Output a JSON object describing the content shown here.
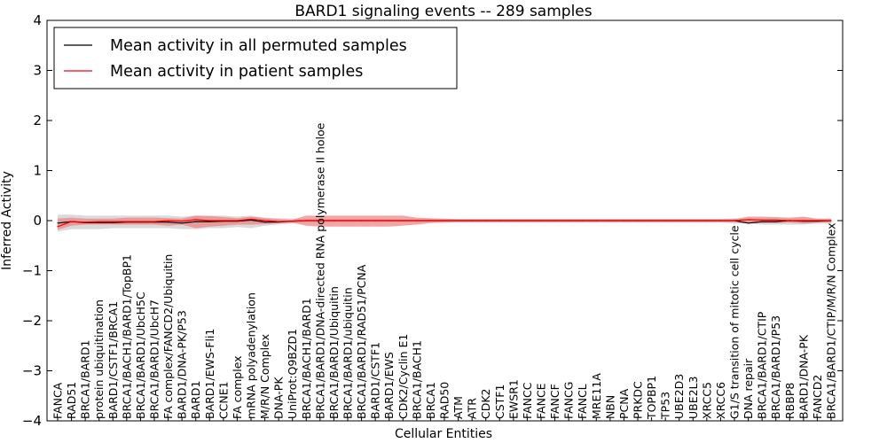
{
  "chart_data": {
    "type": "line",
    "title": "BARD1 signaling events -- 289 samples",
    "xlabel": "Cellular Entities",
    "ylabel": "Inferred Activity",
    "ylim": [
      -4,
      4
    ],
    "yticks": [
      -4,
      -3,
      -2,
      -1,
      0,
      1,
      2,
      3,
      4
    ],
    "ytick_labels": [
      "−4",
      "−3",
      "−2",
      "−1",
      "0",
      "1",
      "2",
      "3",
      "4"
    ],
    "legend": {
      "position": "top-left",
      "entries": [
        {
          "label": "Mean activity in all permuted samples",
          "color": "#000000"
        },
        {
          "label": "Mean activity in patient samples",
          "color": "#ff0000"
        }
      ]
    },
    "categories": [
      "FANCA",
      "RAD51",
      "BRCA1/BARD1",
      "protein ubiquitination",
      "BARD1/CSTF1/BRCA1",
      "BRCA1/BACH1/BARD1/TopBP1",
      "BRCA1/BARD1/UbcH5C",
      "BRCA1/BARD1/UbcH7",
      "FA complex/FANCD2/Ubiquitin",
      "BARD1/DNA-PK/P53",
      "BARD1",
      "BARD1/EWS-Fli1",
      "CCNE1",
      "FA complex",
      "mRNA polyadenylation",
      "M/R/N Complex",
      "DNA-PK",
      "UniProt:Q9BZD1",
      "BRCA1/BACH1/BARD1",
      "BRCA1/BARD1/DNA-directed RNA polymerase II holoe",
      "BRCA1/BARD1/Ubiquitin",
      "BRCA1/BARD1/ubiquitin",
      "BRCA1/BARD1/RAD51/PCNA",
      "BARD1/CSTF1",
      "BARD1/EWS",
      "CDK2/Cyclin E1",
      "BRCA1/BACH1",
      "BRCA1",
      "RAD50",
      "ATM",
      "ATR",
      "CDK2",
      "CSTF1",
      "EWSR1",
      "FANCC",
      "FANCE",
      "FANCF",
      "FANCG",
      "FANCL",
      "MRE11A",
      "NBN",
      "PCNA",
      "PRKDC",
      "TOPBP1",
      "TP53",
      "UBE2D3",
      "UBE2L3",
      "XRCC5",
      "XRCC6",
      "G1/S transition of mitotic cell cycle",
      "DNA repair",
      "BRCA1/BARD1/CTIP",
      "BRCA1/BARD1/P53",
      "RBBP8",
      "BARD1/DNA-PK",
      "FANCD2",
      "BRCA1/BARD1/CTIP/M/R/N Complex"
    ],
    "series": [
      {
        "name": "Mean activity in all permuted samples",
        "color": "#000000",
        "values": [
          -0.05,
          -0.02,
          -0.04,
          -0.04,
          -0.04,
          -0.03,
          -0.03,
          -0.03,
          -0.03,
          -0.05,
          -0.02,
          -0.02,
          -0.01,
          -0.01,
          0.01,
          -0.03,
          -0.03,
          -0.01,
          0.0,
          0.0,
          0.0,
          0.0,
          0.0,
          0.0,
          0.0,
          0.0,
          0.0,
          0.0,
          0.0,
          0.0,
          0.0,
          0.0,
          0.0,
          0.0,
          0.0,
          0.0,
          0.0,
          0.0,
          0.0,
          0.0,
          0.0,
          0.0,
          0.0,
          0.0,
          0.0,
          0.0,
          0.0,
          0.0,
          0.0,
          0.0,
          -0.05,
          -0.02,
          -0.02,
          0.0,
          -0.01,
          -0.01,
          0.0
        ]
      },
      {
        "name": "Mean activity in patient samples",
        "color": "#ff0000",
        "values": [
          -0.12,
          -0.02,
          -0.03,
          -0.02,
          -0.02,
          -0.02,
          -0.02,
          -0.02,
          0.0,
          -0.01,
          0.02,
          0.0,
          0.0,
          0.0,
          0.03,
          0.0,
          -0.02,
          -0.01,
          0.0,
          0.0,
          0.0,
          0.0,
          0.0,
          0.0,
          0.0,
          0.0,
          0.0,
          0.0,
          0.0,
          0.0,
          0.0,
          0.0,
          0.0,
          0.0,
          0.0,
          0.0,
          0.0,
          0.0,
          0.0,
          0.0,
          0.0,
          0.0,
          0.0,
          0.0,
          0.0,
          0.0,
          0.0,
          0.0,
          0.0,
          0.0,
          0.02,
          0.01,
          0.01,
          0.0,
          0.0,
          0.0,
          0.0
        ]
      }
    ],
    "bands": [
      {
        "name": "Permuted samples spread",
        "color": "#bbbbbb",
        "upper": [
          0.12,
          0.12,
          0.1,
          0.1,
          0.1,
          0.1,
          0.1,
          0.1,
          0.1,
          0.08,
          0.1,
          0.1,
          0.1,
          0.08,
          0.1,
          0.06,
          0.05,
          0.04,
          0.03,
          0.03,
          0.03,
          0.03,
          0.03,
          0.03,
          0.03,
          0.03,
          0.03,
          0.03,
          0.03,
          0.03,
          0.03,
          0.03,
          0.03,
          0.03,
          0.03,
          0.03,
          0.03,
          0.03,
          0.03,
          0.03,
          0.03,
          0.03,
          0.03,
          0.03,
          0.03,
          0.03,
          0.03,
          0.03,
          0.03,
          0.05,
          0.03,
          0.05,
          0.05,
          0.05,
          0.05,
          0.03,
          0.03
        ],
        "lower": [
          -0.22,
          -0.17,
          -0.17,
          -0.17,
          -0.15,
          -0.15,
          -0.15,
          -0.15,
          -0.15,
          -0.17,
          -0.17,
          -0.15,
          -0.15,
          -0.13,
          -0.15,
          -0.1,
          -0.08,
          -0.06,
          -0.04,
          -0.04,
          -0.04,
          -0.04,
          -0.04,
          -0.04,
          -0.04,
          -0.04,
          -0.04,
          -0.04,
          -0.04,
          -0.04,
          -0.04,
          -0.04,
          -0.04,
          -0.04,
          -0.04,
          -0.04,
          -0.04,
          -0.04,
          -0.04,
          -0.04,
          -0.04,
          -0.04,
          -0.04,
          -0.04,
          -0.04,
          -0.04,
          -0.04,
          -0.04,
          -0.04,
          -0.06,
          -0.06,
          -0.08,
          -0.08,
          -0.08,
          -0.08,
          -0.06,
          -0.06
        ]
      },
      {
        "name": "Patient samples spread",
        "color": "#f08080",
        "upper": [
          0.04,
          0.06,
          0.04,
          0.04,
          0.04,
          0.06,
          0.06,
          0.06,
          0.05,
          0.04,
          0.1,
          0.09,
          0.07,
          0.05,
          0.08,
          0.05,
          0.03,
          0.02,
          0.1,
          0.1,
          0.1,
          0.1,
          0.1,
          0.1,
          0.1,
          0.1,
          0.06,
          0.05,
          0.04,
          0.03,
          0.03,
          0.03,
          0.03,
          0.03,
          0.03,
          0.03,
          0.03,
          0.03,
          0.03,
          0.03,
          0.03,
          0.03,
          0.03,
          0.03,
          0.03,
          0.03,
          0.03,
          0.03,
          0.03,
          0.03,
          0.08,
          0.08,
          0.07,
          0.06,
          0.08,
          0.04,
          0.04
        ],
        "lower": [
          -0.18,
          -0.1,
          -0.08,
          -0.08,
          -0.08,
          -0.08,
          -0.08,
          -0.08,
          -0.1,
          -0.08,
          -0.15,
          -0.12,
          -0.1,
          -0.08,
          -0.08,
          -0.07,
          -0.05,
          -0.04,
          -0.1,
          -0.12,
          -0.12,
          -0.12,
          -0.12,
          -0.12,
          -0.12,
          -0.1,
          -0.08,
          -0.05,
          -0.04,
          -0.03,
          -0.03,
          -0.03,
          -0.03,
          -0.03,
          -0.03,
          -0.03,
          -0.03,
          -0.03,
          -0.03,
          -0.03,
          -0.03,
          -0.03,
          -0.03,
          -0.03,
          -0.03,
          -0.03,
          -0.03,
          -0.03,
          -0.03,
          -0.03,
          -0.06,
          -0.05,
          -0.05,
          -0.04,
          -0.06,
          -0.04,
          -0.04
        ]
      }
    ]
  }
}
